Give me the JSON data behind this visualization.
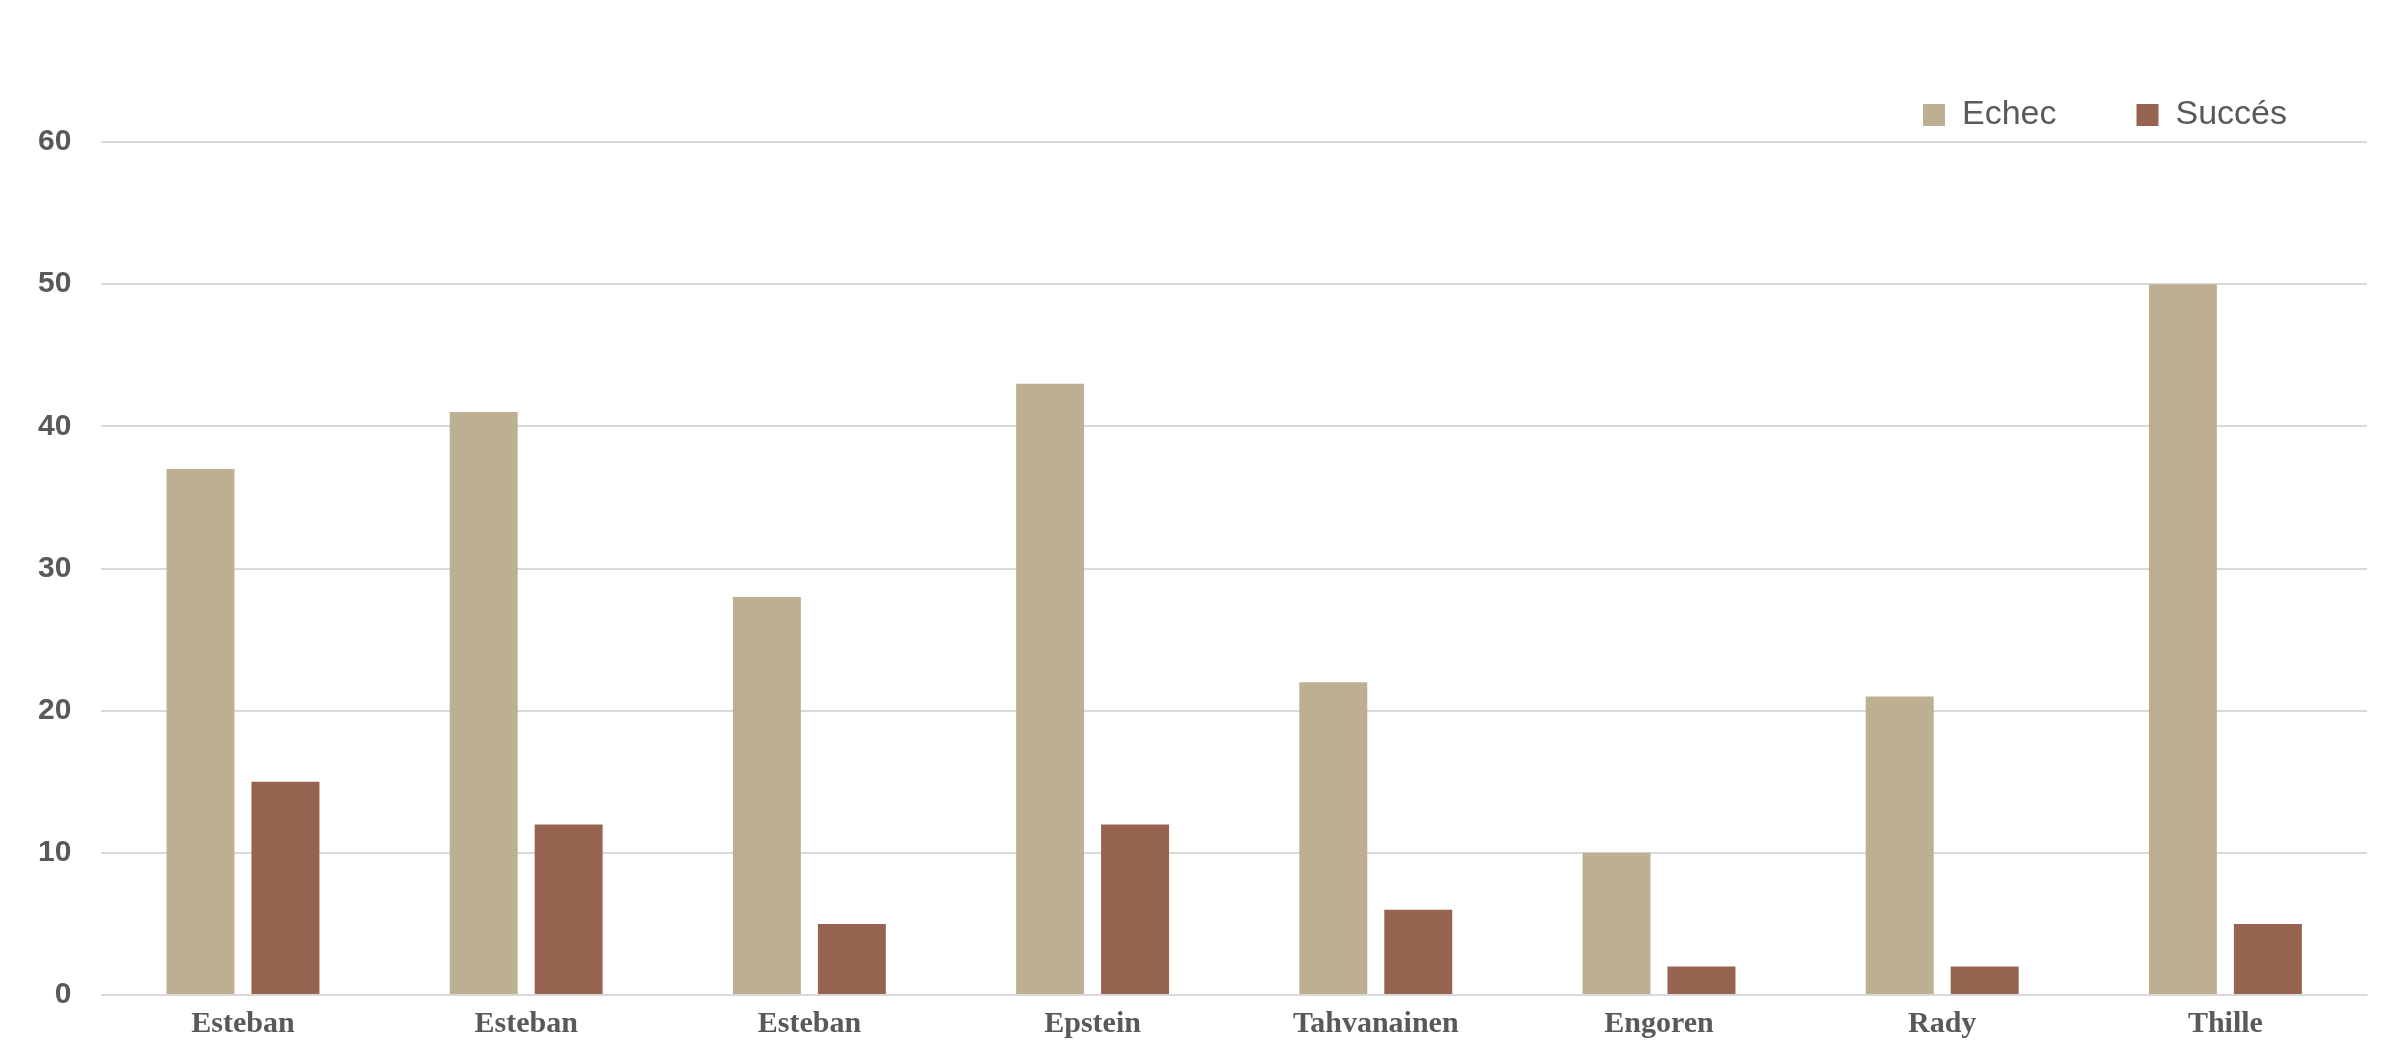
{
  "chart_data": {
    "type": "bar",
    "categories": [
      "Esteban",
      "Esteban",
      "Esteban",
      "Epstein",
      "Tahvanainen",
      "Engoren",
      "Rady",
      "Thille"
    ],
    "series": [
      {
        "name": "Echec",
        "color": "#bdb092",
        "values": [
          37,
          41,
          28,
          43,
          22,
          10,
          21,
          50
        ]
      },
      {
        "name": "Succés",
        "color": "#956350",
        "values": [
          15,
          12,
          5,
          12,
          6,
          2,
          2,
          5
        ]
      }
    ],
    "ylim": [
      0,
      60
    ],
    "yticks": [
      0,
      10,
      20,
      30,
      40,
      50,
      60
    ],
    "grid": "y",
    "legend": "top right"
  }
}
